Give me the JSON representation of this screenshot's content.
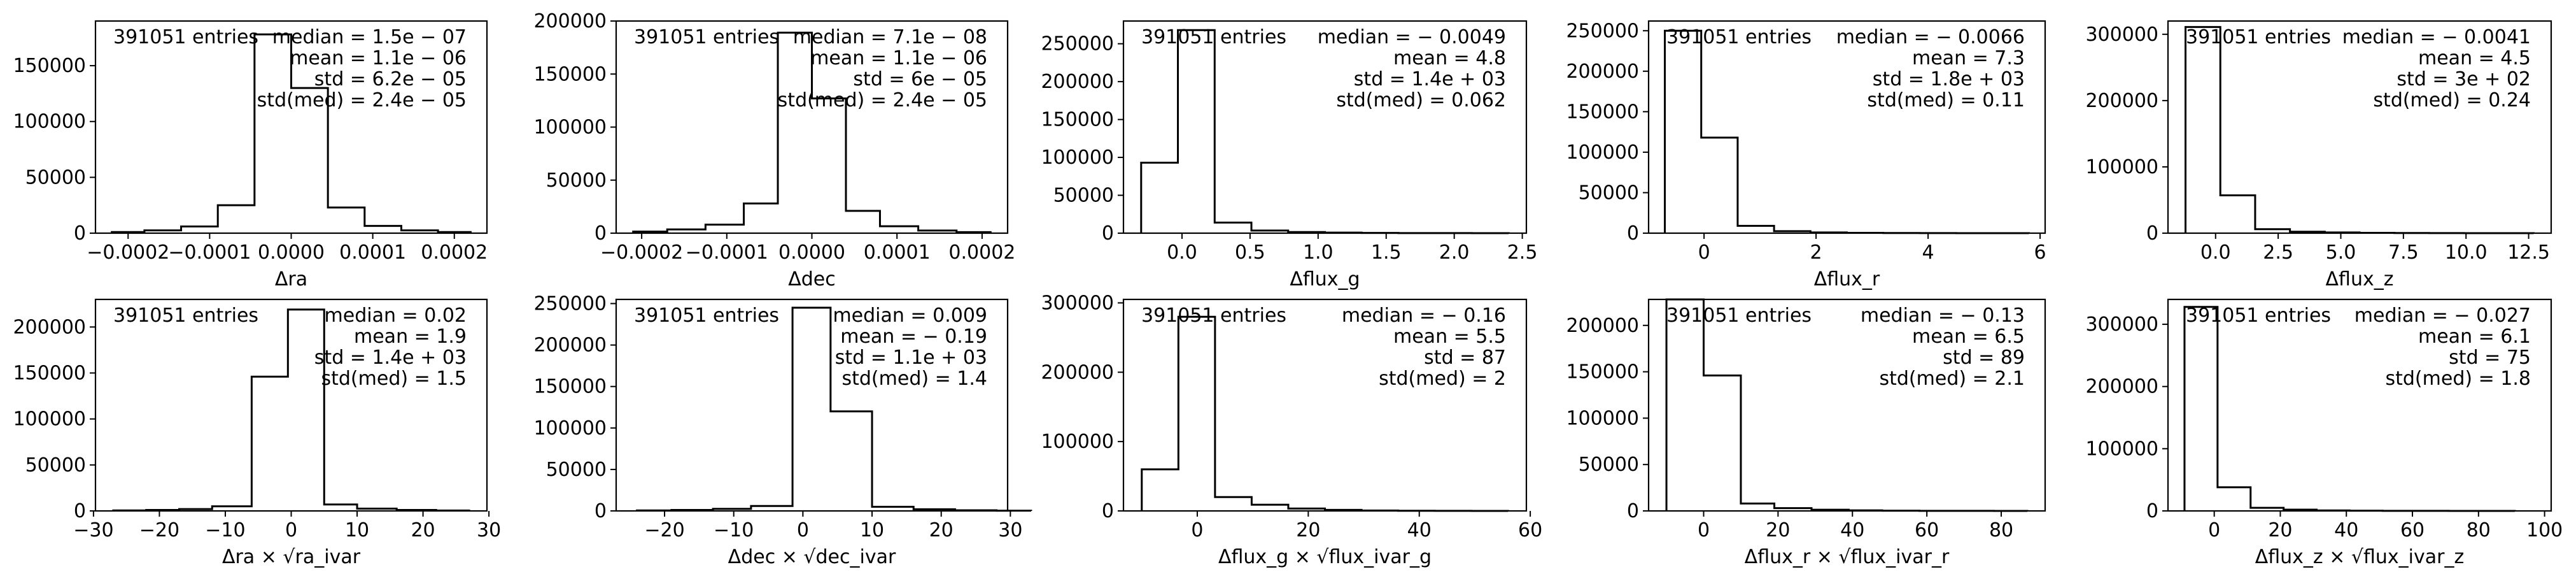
{
  "figure": {
    "background": "#ffffff",
    "line_color": "#000000"
  },
  "chart_data": [
    {
      "type": "histogram",
      "xlabel": "Δra",
      "entries_label": "391051 entries",
      "stats": [
        "median = 1.5e − 07",
        "mean = 1.1e − 06",
        "std = 6.2e − 05",
        "std(med) = 2.4e − 05"
      ],
      "bins": [
        [
          -0.00022,
          -0.00018,
          1000
        ],
        [
          -0.00018,
          -0.000135,
          2500
        ],
        [
          -0.000135,
          -9e-05,
          6000
        ],
        [
          -9e-05,
          -4.5e-05,
          25000
        ],
        [
          -4.5e-05,
          0,
          178000
        ],
        [
          0,
          4.5e-05,
          130000
        ],
        [
          4.5e-05,
          9e-05,
          23000
        ],
        [
          9e-05,
          0.000135,
          6500
        ],
        [
          0.000135,
          0.00018,
          2500
        ],
        [
          0.00018,
          0.00022,
          1000
        ]
      ],
      "xlim": [
        -0.00024,
        0.00024
      ],
      "ylim": [
        0,
        190000
      ],
      "xticks": [
        -0.0002,
        -0.0001,
        0,
        0.0001,
        0.0002
      ],
      "xtick_labels": [
        "−0.0002",
        "−0.0001",
        "0.0000",
        "0.0001",
        "0.0002"
      ],
      "yticks": [
        0,
        50000,
        100000,
        150000
      ],
      "ytick_labels": [
        "0",
        "50000",
        "100000",
        "150000"
      ]
    },
    {
      "type": "histogram",
      "xlabel": "Δdec",
      "entries_label": "391051 entries",
      "stats": [
        "median = 7.1e − 08",
        "mean = 1.1e − 06",
        "std = 6e − 05",
        "std(med) = 2.4e − 05"
      ],
      "bins": [
        [
          -0.00021,
          -0.00017,
          1500
        ],
        [
          -0.00017,
          -0.000125,
          3500
        ],
        [
          -0.000125,
          -8e-05,
          8000
        ],
        [
          -8e-05,
          -4e-05,
          28000
        ],
        [
          -4e-05,
          0,
          189000
        ],
        [
          0,
          4e-05,
          127000
        ],
        [
          4e-05,
          8e-05,
          21000
        ],
        [
          8e-05,
          0.000125,
          6500
        ],
        [
          0.000125,
          0.00017,
          2500
        ],
        [
          0.00017,
          0.00021,
          1000
        ]
      ],
      "xlim": [
        -0.00023,
        0.00023
      ],
      "ylim": [
        0,
        200000
      ],
      "xticks": [
        -0.0002,
        -0.0001,
        0,
        0.0001,
        0.0002
      ],
      "xtick_labels": [
        "−0.0002",
        "−0.0001",
        "0.0000",
        "0.0001",
        "0.0002"
      ],
      "yticks": [
        0,
        50000,
        100000,
        150000,
        200000
      ],
      "ytick_labels": [
        "0",
        "50000",
        "100000",
        "150000",
        "200000"
      ]
    },
    {
      "type": "histogram",
      "xlabel": "Δflux_g",
      "entries_label": "391051 entries",
      "stats": [
        "median = − 0.0049",
        "mean = 4.8",
        "std = 1.4e + 03",
        "std(med) = 0.062"
      ],
      "bins": [
        [
          -0.3,
          -0.03,
          93000
        ],
        [
          -0.03,
          0.24,
          268000
        ],
        [
          0.24,
          0.51,
          14000
        ],
        [
          0.51,
          0.78,
          3500
        ],
        [
          0.78,
          1.05,
          1500
        ],
        [
          1.05,
          1.32,
          700
        ],
        [
          1.32,
          1.59,
          300
        ],
        [
          1.59,
          1.86,
          150
        ],
        [
          1.86,
          2.13,
          80
        ],
        [
          2.13,
          2.4,
          40
        ]
      ],
      "xlim": [
        -0.43,
        2.53
      ],
      "ylim": [
        0,
        280000
      ],
      "xticks": [
        0,
        0.5,
        1,
        1.5,
        2,
        2.5
      ],
      "xtick_labels": [
        "0.0",
        "0.5",
        "1.0",
        "1.5",
        "2.0",
        "2.5"
      ],
      "yticks": [
        0,
        50000,
        100000,
        150000,
        200000,
        250000
      ],
      "ytick_labels": [
        "0",
        "50000",
        "100000",
        "150000",
        "200000",
        "250000"
      ]
    },
    {
      "type": "histogram",
      "xlabel": "Δflux_r",
      "entries_label": "391051 entries",
      "stats": [
        "median = − 0.0066",
        "mean = 7.3",
        "std = 1.8e + 03",
        "std(med) = 0.11"
      ],
      "bins": [
        [
          -0.7,
          -0.05,
          250000
        ],
        [
          -0.05,
          0.6,
          118000
        ],
        [
          0.6,
          1.25,
          9000
        ],
        [
          1.25,
          1.9,
          2500
        ],
        [
          1.9,
          2.55,
          900
        ],
        [
          2.55,
          3.2,
          400
        ],
        [
          3.2,
          3.85,
          200
        ],
        [
          3.85,
          4.5,
          100
        ],
        [
          4.5,
          5.15,
          50
        ],
        [
          5.15,
          5.8,
          30
        ]
      ],
      "xlim": [
        -0.99,
        6.09
      ],
      "ylim": [
        0,
        262000
      ],
      "xticks": [
        0,
        2,
        4,
        6
      ],
      "xtick_labels": [
        "0",
        "2",
        "4",
        "6"
      ],
      "yticks": [
        0,
        50000,
        100000,
        150000,
        200000,
        250000
      ],
      "ytick_labels": [
        "0",
        "50000",
        "100000",
        "150000",
        "200000",
        "250000"
      ]
    },
    {
      "type": "histogram",
      "xlabel": "Δflux_z",
      "entries_label": "391051 entries",
      "stats": [
        "median = − 0.0041",
        "mean = 4.5",
        "std = 3e + 02",
        "std(med) = 0.24"
      ],
      "bins": [
        [
          -1.2,
          0.19,
          311000
        ],
        [
          0.19,
          1.58,
          57000
        ],
        [
          1.58,
          2.97,
          6000
        ],
        [
          2.97,
          4.36,
          2200
        ],
        [
          4.36,
          5.75,
          1100
        ],
        [
          5.75,
          7.14,
          500
        ],
        [
          7.14,
          8.53,
          250
        ],
        [
          8.53,
          9.92,
          120
        ],
        [
          9.92,
          11.31,
          60
        ],
        [
          11.31,
          12.7,
          30
        ]
      ],
      "xlim": [
        -1.9,
        13.4
      ],
      "ylim": [
        0,
        320000
      ],
      "xticks": [
        0,
        2.5,
        5,
        7.5,
        10,
        12.5
      ],
      "xtick_labels": [
        "0.0",
        "2.5",
        "5.0",
        "7.5",
        "10.0",
        "12.5"
      ],
      "yticks": [
        0,
        100000,
        200000,
        300000
      ],
      "ytick_labels": [
        "0",
        "100000",
        "200000",
        "300000"
      ]
    },
    {
      "type": "histogram",
      "xlabel": "Δra × √ra_ivar",
      "entries_label": "391051 entries",
      "stats": [
        "median = 0.02",
        "mean = 1.9",
        "std = 1.4e + 03",
        "std(med) = 1.5"
      ],
      "bins": [
        [
          -27,
          -22,
          500
        ],
        [
          -22,
          -17,
          1000
        ],
        [
          -17,
          -12,
          2000
        ],
        [
          -12,
          -6,
          5000
        ],
        [
          -6,
          -0.5,
          146000
        ],
        [
          -0.5,
          5,
          219000
        ],
        [
          5,
          10,
          7000
        ],
        [
          10,
          16,
          2500
        ],
        [
          16,
          22,
          1000
        ],
        [
          22,
          27,
          400
        ]
      ],
      "xlim": [
        -29.7,
        29.7
      ],
      "ylim": [
        0,
        230000
      ],
      "xticks": [
        -30,
        -20,
        -10,
        0,
        10,
        20,
        30
      ],
      "xtick_labels": [
        "−30",
        "−20",
        "−10",
        "0",
        "10",
        "20",
        "30"
      ],
      "yticks": [
        0,
        50000,
        100000,
        150000,
        200000
      ],
      "ytick_labels": [
        "0",
        "50000",
        "100000",
        "150000",
        "200000"
      ]
    },
    {
      "type": "histogram",
      "xlabel": "Δdec × √dec_ivar",
      "entries_label": "391051 entries",
      "stats": [
        "median = 0.009",
        "mean = − 0.19",
        "std = 1.1e + 03",
        "std(med) = 1.4"
      ],
      "bins": [
        [
          -24,
          -19,
          600
        ],
        [
          -19,
          -13,
          1200
        ],
        [
          -13,
          -7.5,
          2500
        ],
        [
          -7.5,
          -1.5,
          6000
        ],
        [
          -1.5,
          4,
          245000
        ],
        [
          4,
          10,
          120000
        ],
        [
          10,
          16,
          5000
        ],
        [
          16,
          22,
          2000
        ],
        [
          22,
          28,
          800
        ],
        [
          28,
          33,
          300
        ]
      ],
      "xlim": [
        -27,
        29.6
      ],
      "ylim": [
        0,
        255000
      ],
      "xticks": [
        -20,
        -10,
        0,
        10,
        20,
        30
      ],
      "xtick_labels": [
        "−20",
        "−10",
        "0",
        "10",
        "20",
        "30"
      ],
      "yticks": [
        0,
        50000,
        100000,
        150000,
        200000,
        250000
      ],
      "ytick_labels": [
        "0",
        "50000",
        "100000",
        "150000",
        "200000",
        "250000"
      ]
    },
    {
      "type": "histogram",
      "xlabel": "Δflux_g × √flux_ivar_g",
      "entries_label": "391051 entries",
      "stats": [
        "median = − 0.16",
        "mean = 5.5",
        "std = 87",
        "std(med) = 2"
      ],
      "bins": [
        [
          -10,
          -3.4,
          60000
        ],
        [
          -3.4,
          3.2,
          280000
        ],
        [
          3.2,
          9.8,
          20000
        ],
        [
          9.8,
          16.4,
          9000
        ],
        [
          16.4,
          23,
          3500
        ],
        [
          23,
          29.6,
          1500
        ],
        [
          29.6,
          36.2,
          600
        ],
        [
          36.2,
          42.8,
          250
        ],
        [
          42.8,
          49.4,
          100
        ],
        [
          49.4,
          56,
          50
        ]
      ],
      "xlim": [
        -13.3,
        59.3
      ],
      "ylim": [
        0,
        305000
      ],
      "xticks": [
        0,
        20,
        40,
        60
      ],
      "xtick_labels": [
        "0",
        "20",
        "40",
        "60"
      ],
      "yticks": [
        0,
        100000,
        200000,
        300000
      ],
      "ytick_labels": [
        "0",
        "100000",
        "200000",
        "300000"
      ]
    },
    {
      "type": "histogram",
      "xlabel": "Δflux_r × √flux_ivar_r",
      "entries_label": "391051 entries",
      "stats": [
        "median = − 0.13",
        "mean = 6.5",
        "std = 89",
        "std(med) = 2.1"
      ],
      "bins": [
        [
          -10,
          0,
          228000
        ],
        [
          0,
          10,
          146000
        ],
        [
          10,
          19,
          8000
        ],
        [
          19,
          29,
          3000
        ],
        [
          29,
          39,
          1300
        ],
        [
          39,
          48,
          600
        ],
        [
          48,
          58,
          250
        ],
        [
          58,
          68,
          100
        ],
        [
          68,
          78,
          50
        ],
        [
          78,
          87,
          30
        ]
      ],
      "xlim": [
        -14.8,
        91.8
      ],
      "ylim": [
        0,
        228000
      ],
      "xticks": [
        0,
        20,
        40,
        60,
        80
      ],
      "xtick_labels": [
        "0",
        "20",
        "40",
        "60",
        "80"
      ],
      "yticks": [
        0,
        50000,
        100000,
        150000,
        200000
      ],
      "ytick_labels": [
        "0",
        "50000",
        "100000",
        "150000",
        "200000"
      ]
    },
    {
      "type": "histogram",
      "xlabel": "Δflux_z × √flux_ivar_z",
      "entries_label": "391051 entries",
      "stats": [
        "median = − 0.027",
        "mean = 6.1",
        "std = 75",
        "std(med) = 1.8"
      ],
      "bins": [
        [
          -9,
          1,
          328000
        ],
        [
          1,
          11,
          38000
        ],
        [
          11,
          21,
          5000
        ],
        [
          21,
          31,
          2000
        ],
        [
          31,
          41,
          800
        ],
        [
          41,
          51,
          350
        ],
        [
          51,
          61,
          150
        ],
        [
          61,
          71,
          70
        ],
        [
          71,
          81,
          30
        ],
        [
          81,
          91,
          15
        ]
      ],
      "xlim": [
        -14,
        102
      ],
      "ylim": [
        0,
        340000
      ],
      "xticks": [
        0,
        20,
        40,
        60,
        80,
        100
      ],
      "xtick_labels": [
        "0",
        "20",
        "40",
        "60",
        "80",
        "100"
      ],
      "yticks": [
        0,
        100000,
        200000,
        300000
      ],
      "ytick_labels": [
        "0",
        "100000",
        "200000",
        "300000"
      ]
    }
  ]
}
